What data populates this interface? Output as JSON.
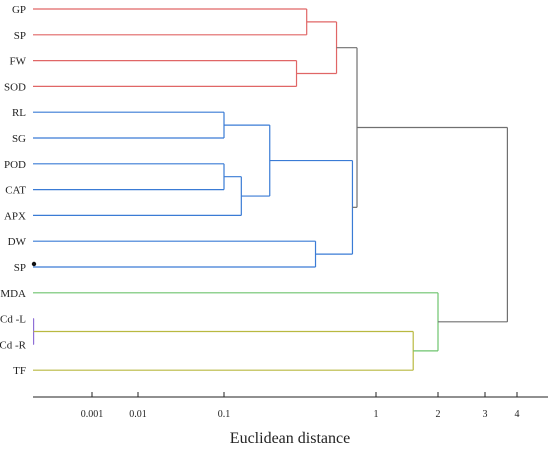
{
  "chart_data": {
    "type": "dendrogram",
    "title": "",
    "xlabel": "Euclidean distance",
    "ylabel": "",
    "x_scale": "custom-compressed",
    "x_ticks": [
      {
        "label": "0.001",
        "value": 0.001
      },
      {
        "label": "0.01",
        "value": 0.01
      },
      {
        "label": "0.1",
        "value": 0.1
      },
      {
        "label": "1",
        "value": 1
      },
      {
        "label": "2",
        "value": 2
      },
      {
        "label": "3",
        "value": 3
      },
      {
        "label": "4",
        "value": 4
      }
    ],
    "leaves": [
      "GP",
      "SP",
      "FW",
      "SOD",
      "RL",
      "SG",
      "POD",
      "CAT",
      "APX",
      "DW",
      "SP",
      "MDA",
      "Cd -L",
      "Cd -R",
      "TF"
    ],
    "leaf_markers": [
      {
        "leaf_index": 10,
        "marker": "dot"
      }
    ],
    "merges": [
      {
        "id": "m1",
        "children": [
          "GP",
          "SP"
        ],
        "height": 0.35,
        "color": "#e06666"
      },
      {
        "id": "m2",
        "children": [
          "FW",
          "SOD"
        ],
        "height": 0.3,
        "color": "#e06666"
      },
      {
        "id": "m3",
        "children": [
          "m1",
          "m2"
        ],
        "height": 0.55,
        "color": "#e06666"
      },
      {
        "id": "m4",
        "children": [
          "RL",
          "SG"
        ],
        "height": 0.1,
        "color": "#3a7bd5"
      },
      {
        "id": "m5",
        "children": [
          "POD",
          "CAT"
        ],
        "height": 0.1,
        "color": "#3a7bd5"
      },
      {
        "id": "m6",
        "children": [
          "m5",
          "APX"
        ],
        "height": 0.13,
        "color": "#3a7bd5"
      },
      {
        "id": "m7",
        "children": [
          "m4",
          "m6"
        ],
        "height": 0.2,
        "color": "#3a7bd5"
      },
      {
        "id": "m8",
        "children": [
          "DW",
          "SP"
        ],
        "height": 0.4,
        "color": "#3a7bd5"
      },
      {
        "id": "m9",
        "children": [
          "m7",
          "m8"
        ],
        "height": 0.7,
        "color": "#3a7bd5"
      },
      {
        "id": "m10",
        "children": [
          "m3",
          "m9"
        ],
        "height": 0.75,
        "color": "#707070"
      },
      {
        "id": "m11",
        "children": [
          "Cd -L",
          "Cd -R"
        ],
        "height": 1e-05,
        "color": "#8f6fd6"
      },
      {
        "id": "m12",
        "children": [
          "m11",
          "TF"
        ],
        "height": 1.6,
        "color": "#b9b940"
      },
      {
        "id": "m13",
        "children": [
          "MDA",
          "m12"
        ],
        "height": 2.0,
        "color": "#6ec46e"
      },
      {
        "id": "m14",
        "children": [
          "m10",
          "m13"
        ],
        "height": 3.7,
        "color": "#707070"
      }
    ],
    "branch_colors": {
      "cluster1": "#e06666",
      "cluster2": "#3a7bd5",
      "mda": "#6ec46e",
      "cd": "#8f6fd6",
      "tf": "#b9b940",
      "root": "#707070"
    },
    "grid": false,
    "legend": "none"
  }
}
